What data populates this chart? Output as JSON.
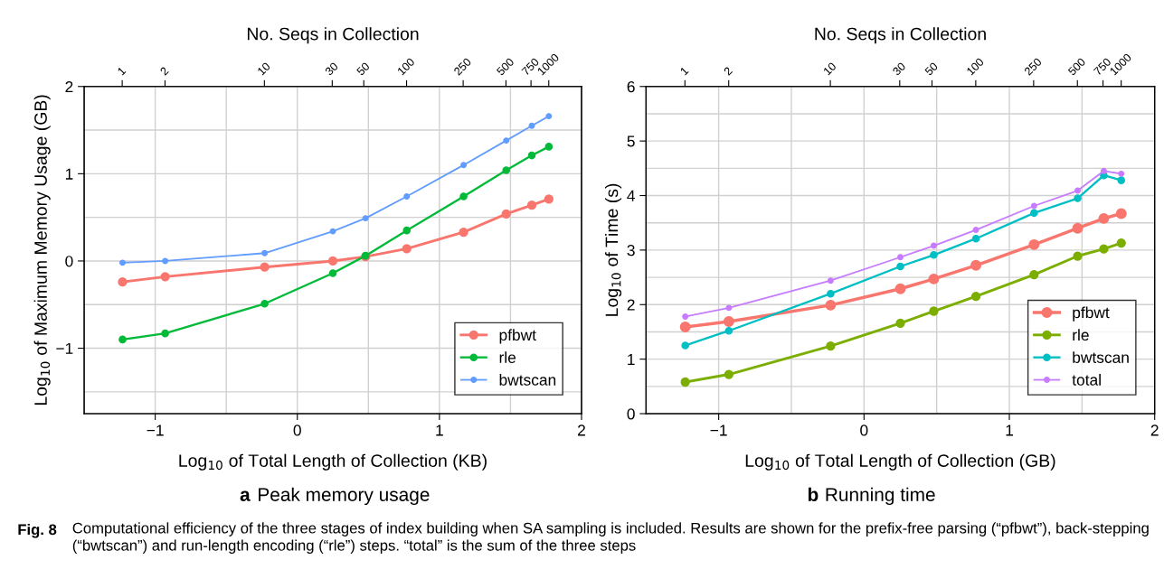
{
  "chart_data": [
    {
      "type": "line",
      "xlabel": "Log$_{10}$ of Total Length of Collection (KB)",
      "ylabel": "Log$_{10}$ of Maximum Memory Usage (GB)",
      "x2label": "No. Seqs in Collection",
      "x": [
        -1.23,
        -0.93,
        -0.23,
        0.25,
        0.48,
        0.77,
        1.17,
        1.47,
        1.65,
        1.77
      ],
      "series": [
        {
          "name": "pfbwt",
          "color": "#f8766d",
          "values": [
            -0.24,
            -0.18,
            -0.07,
            0.0,
            0.05,
            0.14,
            0.33,
            0.54,
            0.64,
            0.71
          ]
        },
        {
          "name": "rle",
          "color": "#00ba38",
          "values": [
            -0.9,
            -0.83,
            -0.49,
            -0.14,
            0.06,
            0.35,
            0.74,
            1.04,
            1.21,
            1.31
          ]
        },
        {
          "name": "bwtscan",
          "color": "#619cff",
          "values": [
            -0.02,
            0.0,
            0.09,
            0.34,
            0.49,
            0.74,
            1.1,
            1.38,
            1.55,
            1.66
          ]
        }
      ],
      "xlim": [
        -1.5,
        2
      ],
      "xticks": [
        {
          "value": -1,
          "label": "−1"
        },
        0,
        1,
        2
      ],
      "ylim": [
        -1.75,
        2
      ],
      "yticks": [
        {
          "value": -1,
          "label": "−1"
        },
        0,
        1,
        2
      ],
      "x2lim": [
        0.54,
        1700
      ],
      "x2ticks": [
        1,
        2,
        10,
        30,
        50,
        100,
        250,
        500,
        750,
        1000
      ],
      "log": "x2",
      "grid": true,
      "legend": "bottom right",
      "marker": "circle",
      "line_style": "solid",
      "annotations": [
        "a",
        "Peak memory usage"
      ]
    },
    {
      "type": "line",
      "xlabel": "Log$_{10}$ of Total Length of Collection (GB)",
      "ylabel": "Log$_{10}$ of Time (s)",
      "x2label": "No. Seqs in Collection",
      "x": [
        -1.23,
        -0.93,
        -0.23,
        0.25,
        0.48,
        0.77,
        1.17,
        1.47,
        1.65,
        1.77
      ],
      "series": [
        {
          "name": "pfbwt",
          "color": "#f8766d",
          "values": [
            1.59,
            1.69,
            1.99,
            2.29,
            2.47,
            2.72,
            3.1,
            3.4,
            3.58,
            3.67
          ]
        },
        {
          "name": "rle",
          "color": "#7cae00",
          "values": [
            0.58,
            0.72,
            1.24,
            1.66,
            1.88,
            2.15,
            2.55,
            2.89,
            3.02,
            3.13
          ]
        },
        {
          "name": "bwtscan",
          "color": "#00bfc4",
          "values": [
            1.25,
            1.52,
            2.2,
            2.7,
            2.91,
            3.21,
            3.68,
            3.95,
            4.37,
            4.28
          ]
        },
        {
          "name": "total",
          "color": "#c77cff",
          "values": [
            1.78,
            1.94,
            2.44,
            2.87,
            3.08,
            3.37,
            3.81,
            4.09,
            4.45,
            4.4
          ]
        }
      ],
      "xlim": [
        -1.5,
        2
      ],
      "xticks": [
        {
          "value": -1,
          "label": "−1"
        },
        0,
        1,
        2
      ],
      "ylim": [
        0,
        6
      ],
      "yticks": [
        0,
        1,
        2,
        3,
        4,
        5,
        6
      ],
      "x2lim": [
        0.54,
        1700
      ],
      "x2ticks": [
        1,
        2,
        10,
        30,
        50,
        100,
        250,
        500,
        750,
        1000
      ],
      "log": "x2",
      "grid": true,
      "legend": "bottom right",
      "marker": "circle",
      "line_style": "solid",
      "annotations": [
        "b",
        "Running time",
        "Fig. 8",
        "Computational efficiency of the three stages of index building when SA sampling is included. Results are shown for the prefix-free parsing (“pfbwt”), back-stepping (“bwtscan”) and run-length encoding (“rle”) steps. “total” is the sum of the three steps"
      ]
    }
  ]
}
